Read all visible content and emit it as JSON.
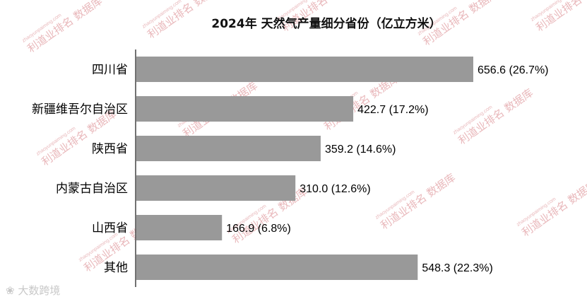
{
  "chart_data": {
    "type": "bar",
    "orientation": "horizontal",
    "title": "2024年 天然气产量细分省份（亿立方米）",
    "categories": [
      "四川省",
      "新疆维吾尔自治区",
      "陕西省",
      "内蒙古自治区",
      "山西省",
      "其他"
    ],
    "values": [
      656.6,
      422.7,
      359.2,
      310.0,
      166.9,
      548.3
    ],
    "data_labels": [
      "656.6 (26.7%)",
      "422.7 (17.2%)",
      "359.2 (14.6%)",
      "310.0 (12.6%)",
      "166.9 (6.8%)",
      "548.3 (22.3%)"
    ],
    "xlim": [
      0,
      660
    ],
    "grid": false,
    "bar_color": "#999999"
  },
  "watermark": {
    "text": "利道业排名 数据库",
    "url": "zhaoyunpaiming.com"
  },
  "corner_logo": "大数跨境"
}
